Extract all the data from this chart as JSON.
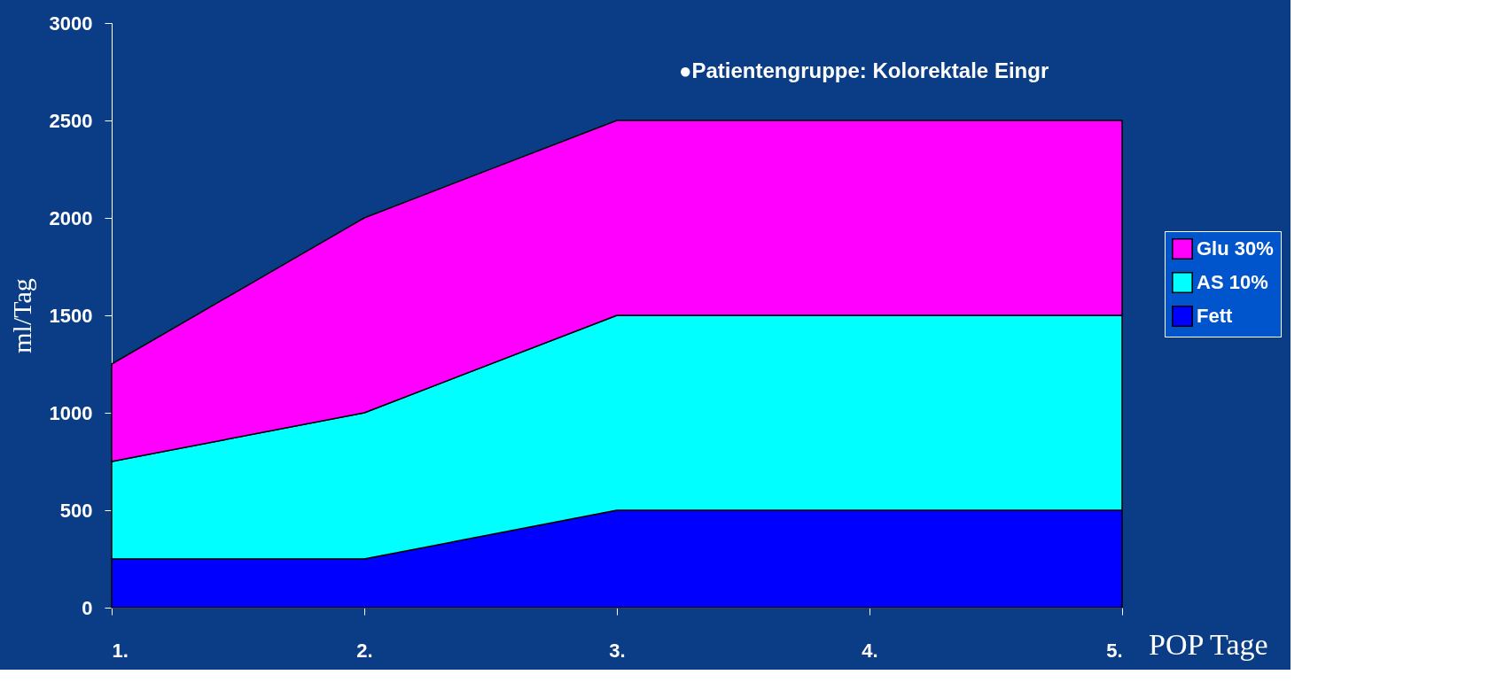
{
  "chart_data": {
    "type": "area",
    "stacked": true,
    "xlabel": "POP Tage",
    "ylabel": "ml/Tag",
    "annotations": [
      "●Patientengruppe: Kolorektale Eingr"
    ],
    "categories": [
      "1.",
      "2.",
      "3.",
      "4.",
      "5."
    ],
    "series": [
      {
        "name": "Fett",
        "color": "#0000ff",
        "values": [
          250,
          250,
          500,
          500,
          500
        ]
      },
      {
        "name": "AS 10%",
        "color": "#00ffff",
        "values": [
          500,
          750,
          1000,
          1000,
          1000
        ]
      },
      {
        "name": "Glu 30%",
        "color": "#ff00ff",
        "values": [
          500,
          1000,
          1000,
          1000,
          1000
        ]
      }
    ],
    "ylim": [
      0,
      3000
    ],
    "yticks": [
      0,
      500,
      1000,
      1500,
      2000,
      2500,
      3000
    ],
    "legend": "right",
    "grid": false
  }
}
